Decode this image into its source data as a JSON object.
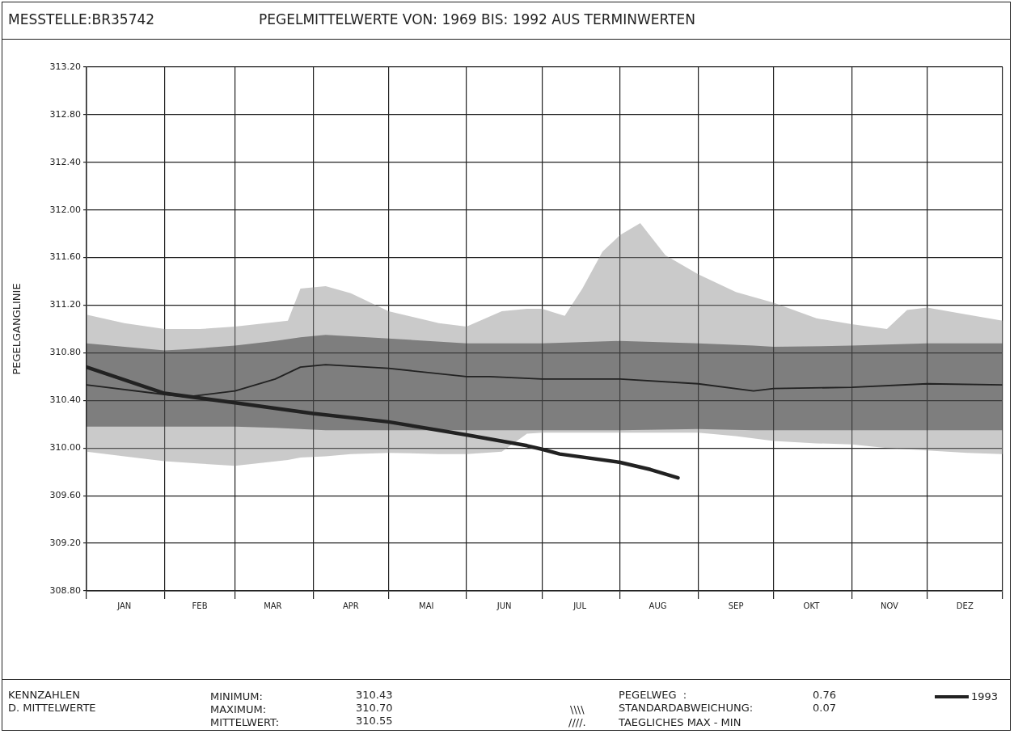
{
  "chart_data": {
    "type": "line",
    "title": "PEGELMITTELWERTE VON: 1969 BIS: 1992 AUS TERMINWERTEN",
    "subtitle": "MESSTELLE:BR35742",
    "ylabel": "PEGELGANGLINIE",
    "xlim": [
      "--01-01",
      "--12-31"
    ],
    "xticks": [
      {
        "value": "--01-01",
        "label": null
      },
      {
        "value": "--01-16",
        "label": "JAN"
      },
      {
        "value": "--02-01",
        "label": null
      },
      {
        "value": "--02-15",
        "label": "FEB"
      },
      {
        "value": "--03-01",
        "label": null
      },
      {
        "value": "--03-16",
        "label": "MAR"
      },
      {
        "value": "--04-01",
        "label": null
      },
      {
        "value": "--04-16",
        "label": "APR"
      },
      {
        "value": "--05-01",
        "label": null
      },
      {
        "value": "--05-16",
        "label": "MAI"
      },
      {
        "value": "--06-01",
        "label": null
      },
      {
        "value": "--06-16",
        "label": "JUN"
      },
      {
        "value": "--07-01",
        "label": null
      },
      {
        "value": "--07-16",
        "label": "JUL"
      },
      {
        "value": "--08-01",
        "label": null
      },
      {
        "value": "--08-16",
        "label": "AUG"
      },
      {
        "value": "--09-01",
        "label": null
      },
      {
        "value": "--09-16",
        "label": "SEP"
      },
      {
        "value": "--10-01",
        "label": null
      },
      {
        "value": "--10-16",
        "label": "OKT"
      },
      {
        "value": "--11-01",
        "label": null
      },
      {
        "value": "--11-16",
        "label": "NOV"
      },
      {
        "value": "--12-01",
        "label": null
      },
      {
        "value": "--12-16",
        "label": "DEZ"
      },
      {
        "value": "--12-31",
        "label": null
      }
    ],
    "ylim": [
      308.8,
      313.2
    ],
    "yticks": [
      {
        "value": 308.8,
        "label": "308.80"
      },
      {
        "value": 309.2,
        "label": "309.20"
      },
      {
        "value": 309.6,
        "label": "309.60"
      },
      {
        "value": 310.0,
        "label": "310.00"
      },
      {
        "value": 310.4,
        "label": "310.40"
      },
      {
        "value": 310.8,
        "label": "310.80"
      },
      {
        "value": 311.2,
        "label": "311.20"
      },
      {
        "value": 311.6,
        "label": "311.60"
      },
      {
        "value": 312.0,
        "label": "312.00"
      },
      {
        "value": 312.4,
        "label": "312.40"
      },
      {
        "value": 312.8,
        "label": "312.80"
      },
      {
        "value": 313.2,
        "label": "313.20"
      }
    ],
    "grid": true,
    "legend": "bottom right",
    "series": [
      {
        "color": "#8a8a8a",
        "x": [
          "--01-01",
          "--01-16",
          "--02-01",
          "--02-15",
          "--03-01",
          "--03-22",
          "--03-27",
          "--04-06",
          "--04-16",
          "--05-01",
          "--05-21",
          "--06-01",
          "--06-15",
          "--06-25",
          "--07-01",
          "--07-10",
          "--07-17",
          "--07-25",
          "--08-01",
          "--08-09",
          "--08-19",
          "--09-01",
          "--09-16",
          "--10-01",
          "--10-18",
          "--11-01",
          "--11-15",
          "--11-23",
          "--12-01",
          "--12-17",
          "--12-31"
        ],
        "values": [
          null,
          null,
          null,
          null,
          null,
          null,
          null,
          null,
          null,
          null,
          null,
          null,
          null,
          null,
          null,
          null,
          null,
          null,
          null,
          null,
          null,
          null,
          null,
          null,
          null,
          null,
          null,
          null,
          null,
          null,
          null
        ],
        "upper": [
          311.12,
          311.05,
          311.0,
          311.0,
          311.02,
          311.07,
          311.34,
          311.36,
          311.3,
          311.15,
          311.05,
          311.02,
          311.15,
          311.17,
          311.17,
          311.11,
          311.34,
          311.65,
          311.79,
          311.89,
          311.62,
          311.46,
          311.31,
          311.22,
          311.09,
          311.04,
          311.0,
          311.16,
          311.18,
          311.12,
          311.07
        ],
        "lower": [
          309.97,
          309.93,
          309.89,
          309.87,
          309.85,
          309.9,
          309.92,
          309.93,
          309.95,
          309.96,
          309.95,
          309.95,
          309.97,
          310.12,
          310.13,
          310.13,
          310.13,
          310.13,
          310.13,
          310.13,
          310.13,
          310.13,
          310.1,
          310.06,
          310.04,
          310.03,
          310.0,
          309.99,
          309.98,
          309.96,
          309.95
        ]
      },
      {
        "color": "#222222",
        "x": [
          "--01-01",
          "--02-01",
          "--02-10",
          "--03-01",
          "--03-17",
          "--03-27",
          "--04-06",
          "--05-01",
          "--06-01",
          "--06-10",
          "--07-01",
          "--08-01",
          "--09-01",
          "--09-23",
          "--10-01",
          "--11-01",
          "--12-01",
          "--12-31"
        ],
        "values": [
          310.53,
          310.45,
          310.43,
          310.48,
          310.58,
          310.68,
          310.7,
          310.67,
          310.6,
          310.6,
          310.58,
          310.58,
          310.54,
          310.48,
          310.5,
          310.51,
          310.54,
          310.53
        ],
        "lower": [
          310.18,
          310.18,
          310.18,
          310.18,
          310.17,
          310.16,
          310.15,
          310.15,
          310.15,
          310.15,
          310.15,
          310.15,
          310.16,
          310.15,
          310.15,
          310.15,
          310.15,
          310.15
        ],
        "upper": [
          310.88,
          310.82,
          310.83,
          310.86,
          310.9,
          310.93,
          310.95,
          310.92,
          310.88,
          310.88,
          310.88,
          310.9,
          310.88,
          310.86,
          310.85,
          310.86,
          310.88,
          310.88
        ]
      },
      {
        "name": "1993",
        "color": "#222222",
        "x": [
          "--01-01",
          "--02-01",
          "--03-01",
          "--04-01",
          "--05-01",
          "--06-01",
          "--06-25",
          "--07-01",
          "--07-08",
          "--08-01",
          "--08-13",
          "--08-24"
        ],
        "values": [
          310.68,
          310.46,
          310.38,
          310.29,
          310.22,
          310.11,
          310.02,
          309.99,
          309.95,
          309.88,
          309.82,
          309.75
        ]
      }
    ],
    "annotations": [
      "KENNZAHLEN",
      "D. MITTELWERTE",
      "MINIMUM:",
      "MAXIMUM:",
      "MITTELWERT:",
      "310.43",
      "310.70",
      "310.55",
      "\\\\\\\\",
      "////.",
      "PEGELWEG  :",
      "STANDARDABWEICHUNG:",
      "TAEGLICHES MAX - MIN",
      "0.76",
      "0.07"
    ]
  }
}
